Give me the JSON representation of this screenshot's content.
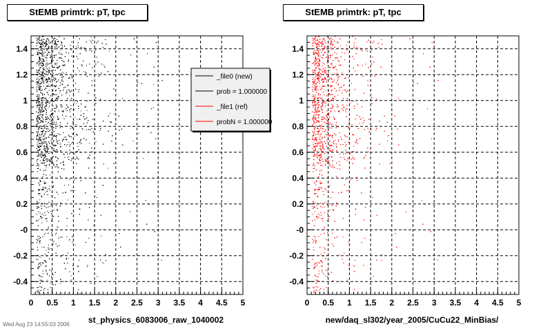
{
  "footer": "Wed Aug 23 14:55:03 2006",
  "legend": {
    "entries": [
      {
        "label": "_file0 (new)",
        "color": "#000000"
      },
      {
        "label": "prob = 1.000000",
        "color": "#000000"
      },
      {
        "label": "_file1 (ref)",
        "color": "#ff0000"
      },
      {
        "label": "probN = 1.000000",
        "color": "#ff0000"
      }
    ]
  },
  "chart_data": [
    {
      "type": "scatter",
      "title": "StEMB primtrk: pT, tpc",
      "xlabel": "st_physics_6083006_raw_1040002",
      "ylabel": "",
      "xlim": [
        0,
        5
      ],
      "ylim": [
        -0.5,
        1.5
      ],
      "xticks": [
        "0",
        "0.5",
        "1",
        "1.5",
        "2",
        "2.5",
        "3",
        "3.5",
        "4",
        "4.5",
        "5"
      ],
      "yticks": [
        "-0.4",
        "-0.2",
        "-0",
        "0.2",
        "0.4",
        "0.6",
        "0.8",
        "1",
        "1.2",
        "1.4"
      ],
      "grid": true,
      "series": [
        {
          "color": "#000000",
          "density_profile": {
            "x": [
              0.15,
              0.3,
              0.5,
              0.7,
              1.0,
              1.5,
              2.0,
              3.0
            ],
            "weight": [
              1.0,
              0.95,
              0.55,
              0.3,
              0.12,
              0.05,
              0.02,
              0.008
            ]
          },
          "dense_band_y": [
            0.5,
            1.5
          ]
        }
      ]
    },
    {
      "type": "scatter",
      "title": "StEMB primtrk: pT, tpc",
      "xlabel": "new/daq_sl302/year_2005/CuCu22_MinBias/",
      "ylabel": "",
      "xlim": [
        0,
        5
      ],
      "ylim": [
        -0.5,
        1.5
      ],
      "xticks": [
        "0",
        "0.5",
        "1",
        "1.5",
        "2",
        "2.5",
        "3",
        "3.5",
        "4",
        "4.5",
        "5"
      ],
      "yticks": [
        "-0.4",
        "-0.2",
        "-0",
        "0.2",
        "0.4",
        "0.6",
        "0.8",
        "1",
        "1.2",
        "1.4"
      ],
      "grid": true,
      "series": [
        {
          "color": "#ff0000",
          "density_profile": {
            "x": [
              0.15,
              0.3,
              0.5,
              0.7,
              1.0,
              1.5,
              2.0,
              3.0
            ],
            "weight": [
              1.0,
              0.9,
              0.5,
              0.25,
              0.1,
              0.04,
              0.015,
              0.006
            ]
          },
          "dense_band_y": [
            0.5,
            1.5
          ]
        }
      ]
    }
  ]
}
